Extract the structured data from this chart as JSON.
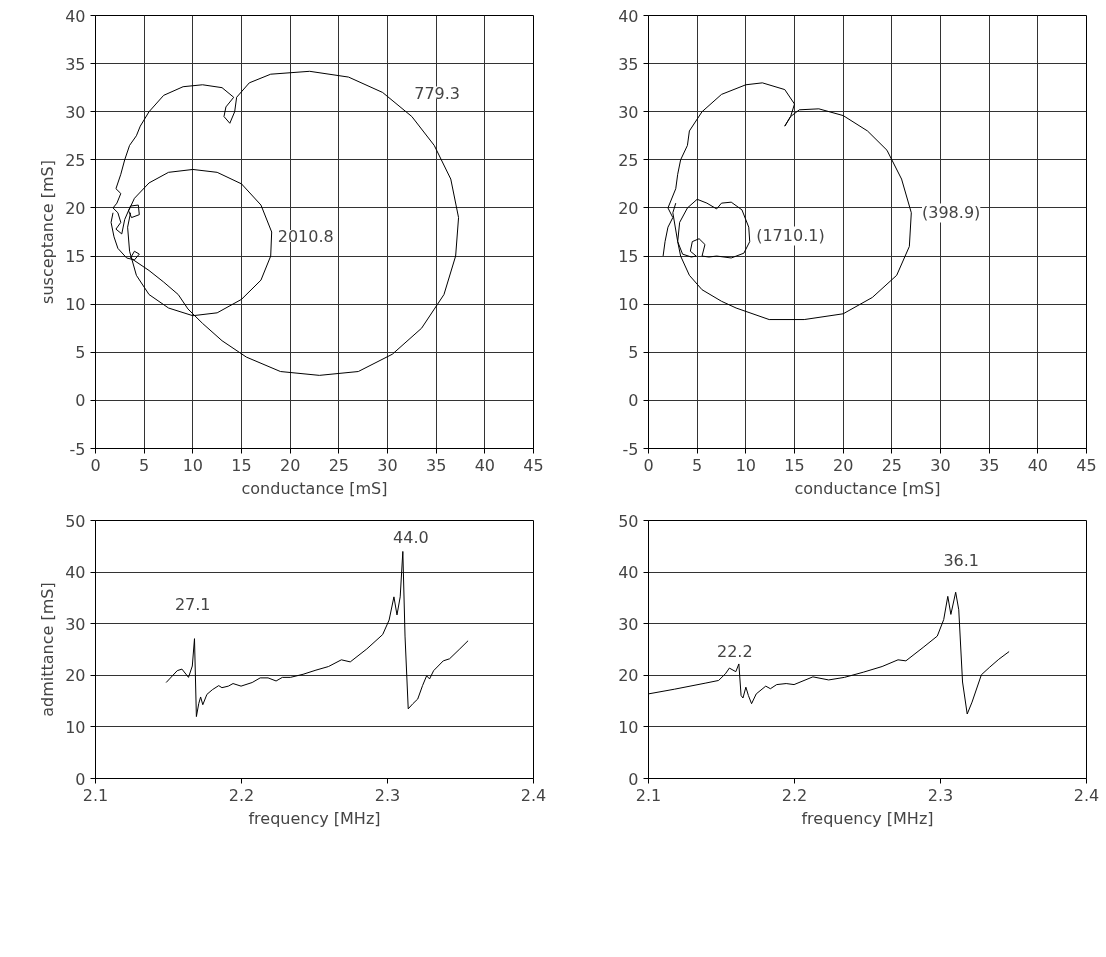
{
  "chart_data": [
    {
      "type": "line",
      "xlabel": "conductance [mS]",
      "ylabel": "susceptance [mS]",
      "xlim": [
        0,
        45
      ],
      "ylim": [
        -5,
        40
      ],
      "xticks": [
        0,
        5,
        10,
        15,
        20,
        25,
        30,
        35,
        40,
        45
      ],
      "yticks": [
        -5,
        0,
        5,
        10,
        15,
        20,
        25,
        30,
        35,
        40
      ],
      "grid": true,
      "series": [
        {
          "color": "#000000",
          "x": [
            1.8,
            1.6,
            1.9,
            2.3,
            3.2,
            4.0,
            4.5,
            4.0,
            3.6,
            5.5,
            7.0,
            8.5,
            9.5,
            11.0,
            13.0,
            15.5,
            19.0,
            23.0,
            27.0,
            30.5,
            33.5,
            35.8,
            37.0,
            37.3,
            36.5,
            34.8,
            32.5,
            29.5,
            26.0,
            22.0,
            18.0,
            15.8,
            14.5,
            14.3,
            13.8,
            13.2,
            13.4,
            14.2,
            13.0,
            11.0,
            9.0,
            7.0,
            5.5,
            4.6,
            4.2,
            3.5,
            3.0,
            2.6,
            2.1,
            2.6,
            2.2,
            1.8,
            2.3,
            2.6,
            2.1,
            2.7,
            3.0,
            3.6,
            4.4,
            4.5,
            3.7,
            3.4,
            4.0,
            5.5,
            7.5,
            10.0,
            12.5,
            15.0,
            17.0,
            18.1,
            18.0,
            17.0,
            15.0,
            12.5,
            10.0,
            7.5,
            5.5,
            4.2,
            3.5,
            3.3,
            3.6
          ],
          "values": [
            19.5,
            18.5,
            17.0,
            15.8,
            14.8,
            14.6,
            15.2,
            15.5,
            14.8,
            13.5,
            12.3,
            11.0,
            9.5,
            8.0,
            6.2,
            4.5,
            3.0,
            2.6,
            3.0,
            4.8,
            7.5,
            11.0,
            15.0,
            19.0,
            23.0,
            26.5,
            29.5,
            32.0,
            33.6,
            34.2,
            33.9,
            33.0,
            31.5,
            30.0,
            28.8,
            29.5,
            30.5,
            31.5,
            32.5,
            32.8,
            32.6,
            31.7,
            30.0,
            28.5,
            27.5,
            26.5,
            25.0,
            23.5,
            22.0,
            21.5,
            20.5,
            20.0,
            19.5,
            18.5,
            17.8,
            17.3,
            18.8,
            20.2,
            20.3,
            19.3,
            19.0,
            19.7,
            21.0,
            22.6,
            23.7,
            24.0,
            23.7,
            22.5,
            20.3,
            17.5,
            15.0,
            12.5,
            10.5,
            9.1,
            8.8,
            9.6,
            11.0,
            13.0,
            15.5,
            18.0,
            19.5
          ]
        }
      ],
      "annotations": [
        "779.3",
        "2010.8"
      ]
    },
    {
      "type": "line",
      "xlabel": "conductance [mS]",
      "xlim": [
        0,
        45
      ],
      "ylim": [
        -5,
        40
      ],
      "xticks": [
        0,
        5,
        10,
        15,
        20,
        25,
        30,
        35,
        40,
        45
      ],
      "yticks": [
        -5,
        0,
        5,
        10,
        15,
        20,
        25,
        30,
        35,
        40
      ],
      "grid": true,
      "series": [
        {
          "color": "#000000",
          "x": [
            1.5,
            1.7,
            2.0,
            2.5,
            2.0,
            2.8,
            3.0,
            3.3,
            4.0,
            4.2,
            5.5,
            7.5,
            10.0,
            11.7,
            14.0,
            15.0,
            14.6,
            14.0,
            14.6,
            15.5,
            17.5,
            20.0,
            22.5,
            24.5,
            26.0,
            27.0,
            26.8,
            25.5,
            23.0,
            20.0,
            16.0,
            12.4,
            9.0,
            7.5,
            5.5,
            4.2,
            3.3,
            3.0,
            3.2,
            4.0,
            5.0,
            6.0,
            7.0,
            7.5,
            8.5,
            9.6,
            10.3,
            10.4,
            9.8,
            8.5,
            7.0,
            6.2,
            5.5,
            5.8,
            5.2,
            4.5,
            4.3,
            4.9,
            4.4,
            3.5,
            3.0,
            2.5,
            2.8
          ],
          "values": [
            15.0,
            16.5,
            18.0,
            19.0,
            20.0,
            22.0,
            23.5,
            25.0,
            26.5,
            28.0,
            30.0,
            31.8,
            32.8,
            33.0,
            32.3,
            30.8,
            29.5,
            28.5,
            29.5,
            30.2,
            30.3,
            29.6,
            28.0,
            26.0,
            23.0,
            19.5,
            16.0,
            13.0,
            10.7,
            9.0,
            8.4,
            8.4,
            9.6,
            10.3,
            11.5,
            13.0,
            15.0,
            16.5,
            18.5,
            20.0,
            20.9,
            20.5,
            19.9,
            20.5,
            20.6,
            19.8,
            18.0,
            16.5,
            15.3,
            14.8,
            15.0,
            14.9,
            15.0,
            16.2,
            16.8,
            16.5,
            15.5,
            15.0,
            14.9,
            15.2,
            16.5,
            19.5,
            20.5
          ]
        }
      ],
      "annotations": [
        "(398.9)",
        "(1710.1)"
      ]
    },
    {
      "type": "line",
      "xlabel": "frequency [MHz]",
      "ylabel": "admittance [mS]",
      "xlim": [
        2.1,
        2.4
      ],
      "ylim": [
        0,
        50
      ],
      "xticks": [
        2.1,
        2.2,
        2.3,
        2.4
      ],
      "yticks": [
        0,
        10,
        20,
        30,
        40,
        50
      ],
      "grid": "y",
      "series": [
        {
          "color": "#000000",
          "x": [
            2.1484,
            2.156,
            2.1592,
            2.1637,
            2.1663,
            2.1678,
            2.1691,
            2.1707,
            2.172,
            2.1735,
            2.1763,
            2.18,
            2.1844,
            2.1866,
            2.191,
            2.1942,
            2.1997,
            2.2073,
            2.2128,
            2.2182,
            2.2237,
            2.228,
            2.2335,
            2.2422,
            2.251,
            2.2596,
            2.2684,
            2.2745,
            2.2858,
            2.2967,
            2.3011,
            2.3044,
            2.3065,
            2.3087,
            2.3105,
            2.312,
            2.3142,
            2.3174,
            2.3207,
            2.324,
            2.3268,
            2.3288,
            2.3316,
            2.3382,
            2.3425,
            2.3491,
            2.3552
          ],
          "values": [
            18.6,
            20.9,
            21.2,
            19.6,
            21.8,
            27.1,
            12.0,
            14.5,
            15.8,
            14.3,
            16.3,
            17.2,
            18.0,
            17.6,
            17.9,
            18.4,
            17.9,
            18.6,
            19.5,
            19.5,
            18.9,
            19.6,
            19.6,
            20.2,
            21.0,
            21.7,
            23.0,
            22.6,
            25.1,
            27.9,
            30.7,
            35.2,
            31.7,
            35.2,
            44.0,
            27.6,
            13.5,
            14.5,
            15.4,
            18.0,
            19.9,
            19.3,
            20.9,
            22.8,
            23.2,
            25.0,
            26.7
          ]
        }
      ],
      "annotations": [
        "27.1",
        "44.0"
      ]
    },
    {
      "type": "line",
      "xlabel": "frequency [MHz]",
      "xlim": [
        2.1,
        2.4
      ],
      "ylim": [
        0,
        50
      ],
      "xticks": [
        2.1,
        2.2,
        2.3,
        2.4
      ],
      "yticks": [
        0,
        10,
        20,
        30,
        40,
        50
      ],
      "grid": "y",
      "series": [
        {
          "color": "#000000",
          "x": [
            2.1,
            2.1177,
            2.1393,
            2.148,
            2.1527,
            2.1554,
            2.1598,
            2.1619,
            2.1634,
            2.1647,
            2.1667,
            2.1684,
            2.1706,
            2.1738,
            2.1803,
            2.1835,
            2.1878,
            2.1943,
            2.1997,
            2.2126,
            2.2234,
            2.2342,
            2.2471,
            2.26,
            2.2709,
            2.2763,
            2.2881,
            2.2978,
            2.3022,
            2.305,
            2.3071,
            2.3104,
            2.3125,
            2.3151,
            2.3183,
            2.3216,
            2.328,
            2.3334,
            2.3399,
            2.347
          ],
          "values": [
            16.4,
            17.3,
            18.5,
            19.0,
            20.3,
            21.4,
            20.7,
            22.2,
            16.1,
            15.6,
            17.7,
            16.1,
            14.5,
            16.4,
            17.9,
            17.4,
            18.2,
            18.4,
            18.2,
            19.7,
            19.1,
            19.6,
            20.6,
            21.7,
            23.0,
            22.8,
            25.4,
            27.6,
            30.8,
            35.3,
            31.8,
            36.1,
            32.7,
            18.7,
            12.5,
            14.8,
            20.1,
            21.5,
            23.1,
            24.6
          ]
        }
      ],
      "annotations": [
        "22.2",
        "36.1"
      ]
    }
  ]
}
